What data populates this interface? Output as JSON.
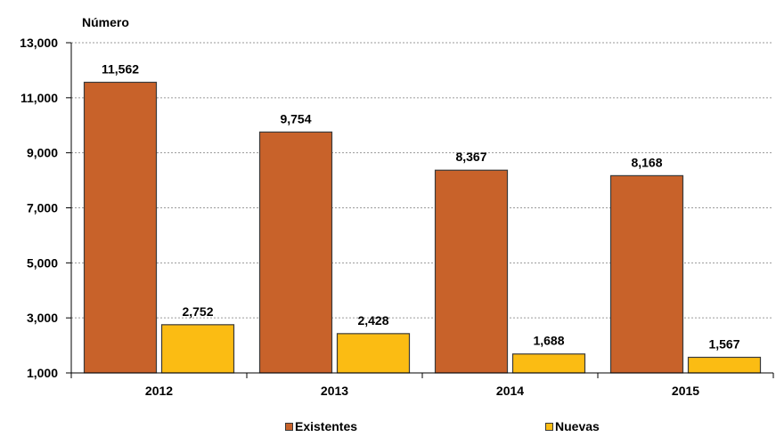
{
  "chart_data": {
    "type": "bar",
    "title": "",
    "ylabel": "Número",
    "xlabel": "",
    "categories": [
      "2012",
      "2013",
      "2014",
      "2015"
    ],
    "series": [
      {
        "name": "Existentes",
        "values": [
          11562,
          9754,
          8367,
          8168
        ],
        "labels": [
          "11,562",
          "9,754",
          "8,367",
          "8,168"
        ],
        "color": "#c8622a"
      },
      {
        "name": "Nuevas",
        "values": [
          2752,
          2428,
          1688,
          1567
        ],
        "labels": [
          "2,752",
          "2,428",
          "1,688",
          "1,567"
        ],
        "color": "#fbbc13"
      }
    ],
    "ylim": [
      1000,
      13000
    ],
    "yticks": [
      1000,
      3000,
      5000,
      7000,
      9000,
      11000,
      13000
    ],
    "ytick_labels": [
      "1,000",
      "3,000",
      "5,000",
      "7,000",
      "9,000",
      "11,000",
      "13,000"
    ],
    "grid": true,
    "legend_position": "bottom"
  }
}
